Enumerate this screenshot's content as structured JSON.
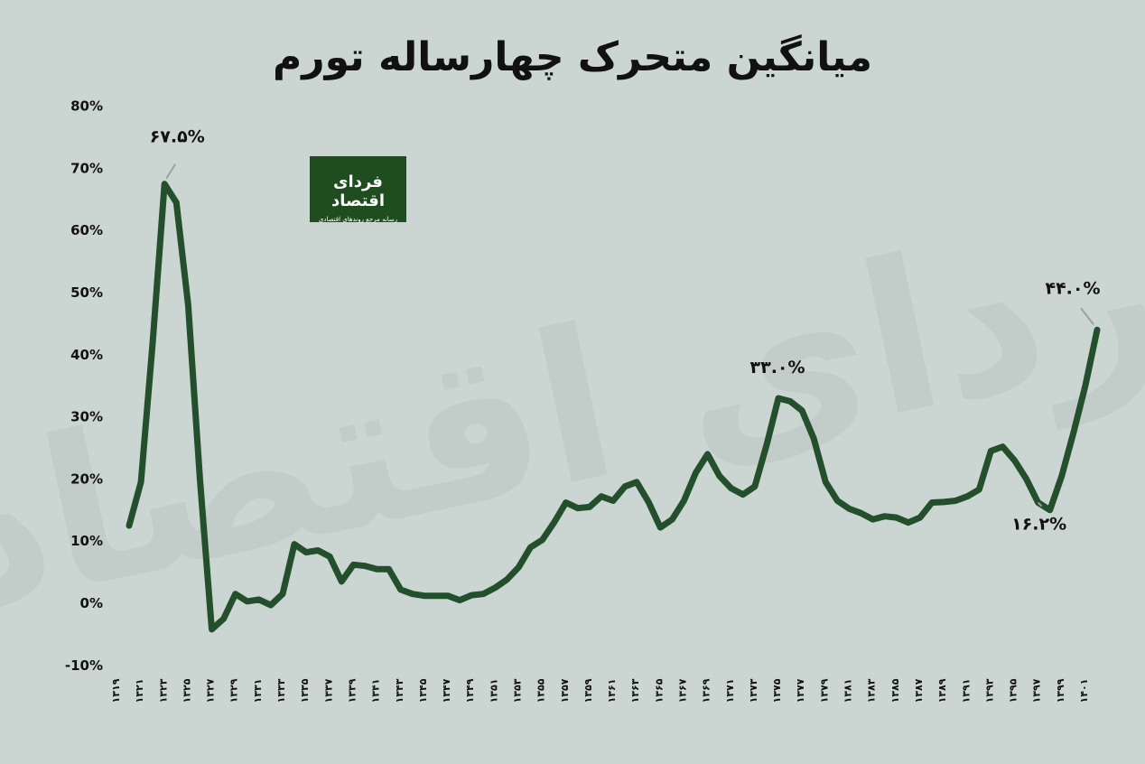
{
  "title": "میانگین متحرک چهارساله تورم",
  "logo": {
    "name": "فردای اقتصاد",
    "tagline": "رسانه مرجع روندهای اقتصادی"
  },
  "watermark": "فردای اقتصاد",
  "colors": {
    "background": "#cbd5d2",
    "line": "#234f2c",
    "text": "#111111",
    "logo_bg": "#1f4d1f"
  },
  "chart_data": {
    "type": "line",
    "title": "میانگین متحرک چهارساله تورم",
    "xlabel": "",
    "ylabel": "",
    "ylim": [
      -10,
      80
    ],
    "y_ticks": [
      {
        "v": -10,
        "label": "-10%"
      },
      {
        "v": 0,
        "label": "0%"
      },
      {
        "v": 10,
        "label": "10%"
      },
      {
        "v": 20,
        "label": "20%"
      },
      {
        "v": 30,
        "label": "30%"
      },
      {
        "v": 40,
        "label": "40%"
      },
      {
        "v": 50,
        "label": "50%"
      },
      {
        "v": 60,
        "label": "60%"
      },
      {
        "v": 70,
        "label": "70%"
      },
      {
        "v": 80,
        "label": "80%"
      }
    ],
    "x": [
      1319,
      1320,
      1321,
      1322,
      1323,
      1324,
      1325,
      1326,
      1327,
      1328,
      1329,
      1330,
      1331,
      1332,
      1333,
      1334,
      1335,
      1336,
      1337,
      1338,
      1339,
      1340,
      1341,
      1342,
      1343,
      1344,
      1345,
      1346,
      1347,
      1348,
      1349,
      1350,
      1351,
      1352,
      1353,
      1354,
      1355,
      1356,
      1357,
      1358,
      1359,
      1360,
      1361,
      1362,
      1363,
      1364,
      1365,
      1366,
      1367,
      1368,
      1369,
      1370,
      1371,
      1372,
      1373,
      1374,
      1375,
      1376,
      1377,
      1378,
      1379,
      1380,
      1381,
      1382,
      1383,
      1384,
      1385,
      1386,
      1387,
      1388,
      1389,
      1390,
      1391,
      1392,
      1393,
      1394,
      1395,
      1396,
      1397,
      1398,
      1399,
      1400,
      1401
    ],
    "x_tick_labels": [
      "1319",
      "1321",
      "1323",
      "1325",
      "1327",
      "1329",
      "1331",
      "1333",
      "1335",
      "1337",
      "1339",
      "1341",
      "1343",
      "1345",
      "1347",
      "1349",
      "1351",
      "1353",
      "1355",
      "1357",
      "1359",
      "1361",
      "1363",
      "1365",
      "1367",
      "1369",
      "1371",
      "1373",
      "1375",
      "1377",
      "1379",
      "1381",
      "1383",
      "1385",
      "1387",
      "1389",
      "1391",
      "1393",
      "1395",
      "1397",
      "1399",
      "1401"
    ],
    "series": [
      {
        "values": [
          12.5,
          19.5,
          42,
          67.5,
          64.5,
          48,
          20,
          -4.2,
          -2.5,
          1.5,
          0.3,
          0.6,
          -0.3,
          1.5,
          9.5,
          8.2,
          8.5,
          7.5,
          3.5,
          6.2,
          6,
          5.5,
          5.5,
          2.2,
          1.5,
          1.2,
          1.2,
          1.2,
          0.5,
          1.3,
          1.5,
          2.5,
          3.8,
          5.8,
          9,
          10.2,
          13,
          16.2,
          15.3,
          15.5,
          17.2,
          16.5,
          18.8,
          19.5,
          16.3,
          12.2,
          13.5,
          16.5,
          21,
          24,
          20.5,
          18.5,
          17.5,
          18.8,
          25.5,
          33,
          32.5,
          31,
          26.5,
          19.5,
          16.5,
          15.2,
          14.5,
          13.5,
          14,
          13.8,
          13,
          13.8,
          16.2,
          16.3,
          16.5,
          17.2,
          18.3,
          24.5,
          25.2,
          23,
          20,
          16.2,
          15,
          20.5,
          27.5,
          35,
          44
        ]
      }
    ],
    "annotations": [
      {
        "label": "67.5%",
        "x": 1322,
        "y": 67.5
      },
      {
        "label": "33.0%",
        "x": 1374,
        "y": 33.0
      },
      {
        "label": "16.2%",
        "x": 1396,
        "y": 16.2
      },
      {
        "label": "44.0%",
        "x": 1401,
        "y": 44.0
      }
    ],
    "grid": false,
    "legend": "none"
  }
}
